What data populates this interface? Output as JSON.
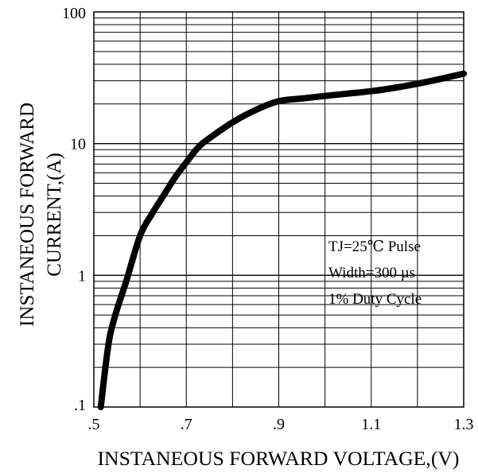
{
  "chart_data": {
    "type": "line",
    "title": "",
    "xlabel": "INSTANEOUS FORWARD VOLTAGE,(V)",
    "ylabel": "INSTANEOUS FORWARD CURRENT,(A)",
    "ylabel_lines": [
      "INSTANEOUS FORWARD",
      "CURRENT,(A)"
    ],
    "xlim": [
      0.5,
      1.3
    ],
    "ylim": [
      0.1,
      100
    ],
    "y_scale": "log",
    "grid": true,
    "x_ticks": [
      {
        "value": 0.5,
        "label": ".5"
      },
      {
        "value": 0.7,
        "label": ".7"
      },
      {
        "value": 0.9,
        "label": ".9"
      },
      {
        "value": 1.1,
        "label": "1.1"
      },
      {
        "value": 1.3,
        "label": "1.3"
      }
    ],
    "y_ticks": [
      {
        "value": 0.1,
        "label": ".1"
      },
      {
        "value": 1,
        "label": "1"
      },
      {
        "value": 10,
        "label": "10"
      },
      {
        "value": 100,
        "label": "100"
      }
    ],
    "annotation_lines": [
      "TJ=25℃ Pulse",
      "Width=300 µs",
      "1% Duty Cycle"
    ],
    "series": [
      {
        "x": [
          0.515,
          0.525,
          0.535,
          0.55,
          0.57,
          0.6,
          0.625,
          0.65,
          0.675,
          0.7,
          0.725,
          0.75,
          0.8,
          0.85,
          0.9,
          0.95,
          1.0,
          1.05,
          1.1,
          1.15,
          1.2,
          1.25,
          1.3
        ],
        "y": [
          0.1,
          0.2,
          0.35,
          0.55,
          0.9,
          2.0,
          2.9,
          4.0,
          5.5,
          7.2,
          9.3,
          11.0,
          14.5,
          18.0,
          21.0,
          22.0,
          23.0,
          24.0,
          25.0,
          26.5,
          28.5,
          31.0,
          34.0
        ]
      }
    ]
  }
}
